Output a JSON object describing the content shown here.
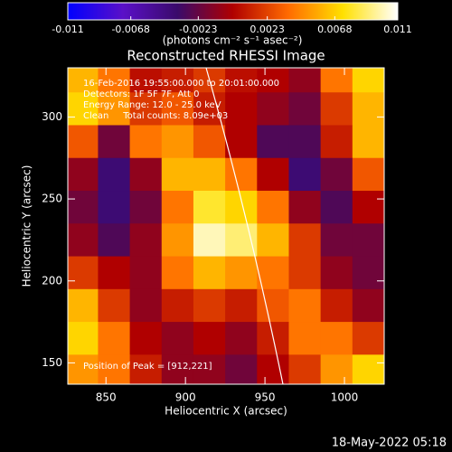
{
  "chart_data": {
    "type": "heatmap",
    "title": "Reconstructed RHESSI Image",
    "colorbar_label": "(photons cm⁻² s⁻¹ asec⁻²)",
    "clim": [
      -0.011,
      0.011
    ],
    "colorbar_ticks": [
      -0.011,
      -0.0068,
      -0.0023,
      0.0023,
      0.0068,
      0.011
    ],
    "colormap": [
      "#0000ff",
      "#5a10c8",
      "#3a0a6a",
      "#b00000",
      "#ff6a00",
      "#ffe000",
      "#ffffff"
    ],
    "x_label": "Heliocentric X (arcsec)",
    "y_label": "Heliocentric Y (arcsec)",
    "xlim": [
      826,
      1025
    ],
    "ylim": [
      137,
      330
    ],
    "xticks": [
      850,
      900,
      950,
      1000
    ],
    "yticks": [
      150,
      200,
      250,
      300
    ],
    "x": [
      835,
      855,
      875,
      895,
      915,
      935,
      955,
      975,
      995,
      1015
    ],
    "y": [
      325,
      305,
      285,
      265,
      245,
      225,
      205,
      185,
      165,
      145
    ],
    "z": [
      [
        0.006,
        0.004,
        0.0005,
        0.001,
        0.002,
        0.0005,
        0.0,
        -0.001,
        0.004,
        0.007
      ],
      [
        0.007,
        0.005,
        0.002,
        0.003,
        0.001,
        0.0,
        -0.001,
        -0.002,
        0.002,
        0.006
      ],
      [
        0.003,
        -0.002,
        0.004,
        0.005,
        0.003,
        0.0,
        -0.003,
        -0.003,
        0.001,
        0.006
      ],
      [
        -0.001,
        -0.004,
        -0.001,
        0.006,
        0.006,
        0.004,
        0.0,
        -0.004,
        -0.002,
        0.003
      ],
      [
        -0.002,
        -0.004,
        -0.002,
        0.004,
        0.008,
        0.007,
        0.004,
        -0.001,
        -0.003,
        0.0
      ],
      [
        -0.001,
        -0.003,
        -0.001,
        0.005,
        0.01,
        0.009,
        0.006,
        0.002,
        -0.002,
        -0.002
      ],
      [
        0.002,
        0.0,
        -0.001,
        0.004,
        0.006,
        0.005,
        0.004,
        0.002,
        -0.001,
        -0.002
      ],
      [
        0.006,
        0.002,
        -0.001,
        0.001,
        0.002,
        0.001,
        0.003,
        0.004,
        0.001,
        -0.001
      ],
      [
        0.007,
        0.004,
        0.0,
        -0.001,
        0.0,
        -0.001,
        0.001,
        0.004,
        0.004,
        0.002
      ],
      [
        0.005,
        0.004,
        0.001,
        -0.001,
        -0.001,
        -0.002,
        0.0,
        0.002,
        0.005,
        0.007
      ]
    ],
    "annotations": [
      "16-Feb-2016 19:55:00.000 to 20:01:00.000",
      "Detectors: 1F 5F 7F, Att 0",
      "Energy Range: 12.0 - 25.0 keV",
      "Clean     Total counts: 8.09e+03"
    ],
    "peak_label": "Position of Peak = [912,221]",
    "footer": "18-May-2022 05:18"
  }
}
